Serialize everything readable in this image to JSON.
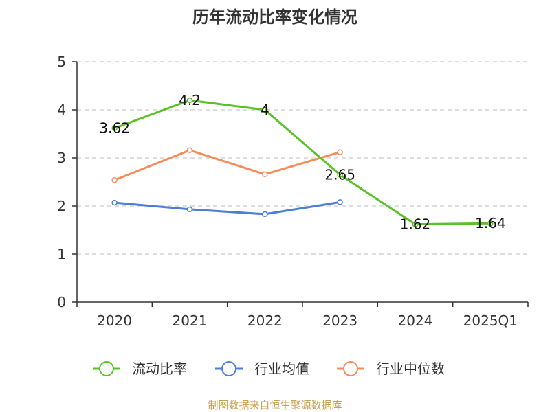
{
  "chart_data": {
    "type": "line",
    "title": "历年流动比率变化情况",
    "categories": [
      "2020",
      "2021",
      "2022",
      "2023",
      "2024",
      "2025Q1"
    ],
    "ylim": [
      0,
      5
    ],
    "yticks": [
      "0",
      "1",
      "2",
      "3",
      "4",
      "5"
    ],
    "grid": true,
    "legend_position": "bottom",
    "series": [
      {
        "name": "流动比率",
        "color": "#5ac227",
        "values": [
          3.62,
          4.2,
          4,
          2.65,
          1.62,
          1.64
        ],
        "labels": [
          "3.62",
          "4.2",
          "4",
          "2.65",
          "1.62",
          "1.64"
        ]
      },
      {
        "name": "行业均值",
        "color": "#4e7fd6",
        "values": [
          2.07,
          1.93,
          1.83,
          2.08,
          null,
          null
        ]
      },
      {
        "name": "行业中位数",
        "color": "#f58d5a",
        "values": [
          2.54,
          3.16,
          2.66,
          3.12,
          null,
          null
        ]
      }
    ]
  },
  "source_note": "制图数据来自恒生聚源数据库"
}
